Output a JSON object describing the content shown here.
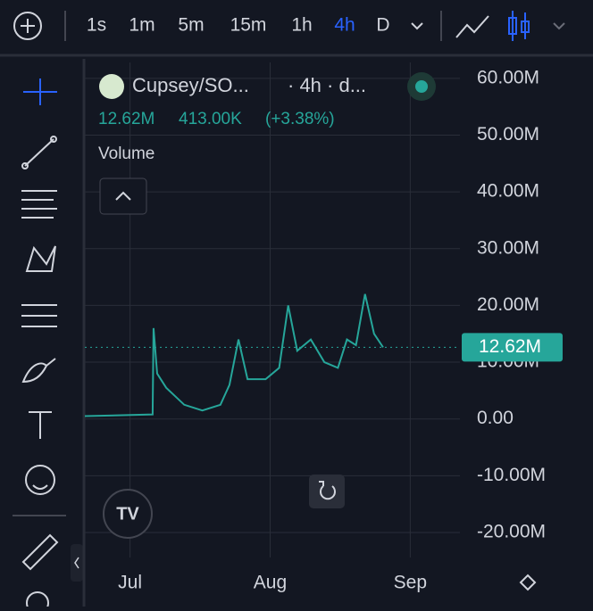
{
  "toolbar": {
    "intervals": [
      "1s",
      "1m",
      "5m",
      "15m",
      "1h",
      "4h",
      "D"
    ],
    "active": "4h"
  },
  "legend": {
    "symbol": "Cupsey/SO...",
    "interval": "· 4h · d...",
    "price": "12.62M",
    "change": "413.00K",
    "change_pct": "(+3.38%)",
    "indicator": "Volume"
  },
  "chart_data": {
    "type": "line",
    "color": "#26a69a",
    "x": [
      -10,
      5,
      5.2,
      6,
      8,
      12,
      16,
      20,
      22,
      24,
      26,
      30,
      33,
      35,
      37,
      40,
      43,
      46,
      48,
      50,
      52,
      54,
      56
    ],
    "values": [
      500000,
      800000,
      16000000,
      8000000,
      5500000,
      2500000,
      1500000,
      2500000,
      6000000,
      14000000,
      7000000,
      7000000,
      9000000,
      20000000,
      12000000,
      14000000,
      10000000,
      9000000,
      14000000,
      13000000,
      22000000,
      15000000,
      12620000
    ],
    "xlim": [
      -10,
      73
    ],
    "xticks": [
      {
        "value": 0,
        "label": "Jul"
      },
      {
        "value": 31,
        "label": "Aug"
      },
      {
        "value": 62,
        "label": "Sep"
      }
    ],
    "ylim": [
      -24400000,
      62800000
    ],
    "yticks": [
      {
        "value": 60000000,
        "label": "60.00M"
      },
      {
        "value": 50000000,
        "label": "50.00M"
      },
      {
        "value": 40000000,
        "label": "40.00M"
      },
      {
        "value": 30000000,
        "label": "30.00M"
      },
      {
        "value": 20000000,
        "label": "20.00M"
      },
      {
        "value": 10000000,
        "label": "10.00M"
      },
      {
        "value": 0,
        "label": "0.00"
      },
      {
        "value": -10000000,
        "label": "-10.00M"
      },
      {
        "value": -20000000,
        "label": "-20.00M"
      }
    ],
    "last_price": {
      "value": 12620000,
      "label": "12.62M"
    },
    "grid": true
  }
}
